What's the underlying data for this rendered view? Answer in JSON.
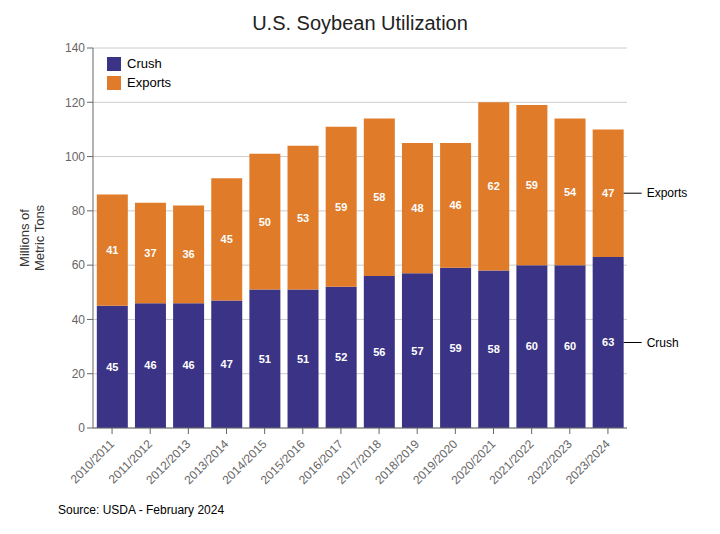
{
  "chart_data": {
    "type": "bar",
    "title": "U.S. Soybean Utilization",
    "ylabel": "Millions of\nMetric Tons",
    "source": "Source: USDA - February 2024",
    "categories": [
      "2010/2011",
      "2011/2012",
      "2012/2013",
      "2013/2014",
      "2014/2015",
      "2015/2016",
      "2016/2017",
      "2017/2018",
      "2018/2019",
      "2019/2020",
      "2020/2021",
      "2021/2022",
      "2022/2023",
      "2023/2024"
    ],
    "series": [
      {
        "name": "Crush",
        "color": "#3b3486",
        "values": [
          45,
          46,
          46,
          47,
          51,
          51,
          52,
          56,
          57,
          59,
          58,
          60,
          60,
          63
        ]
      },
      {
        "name": "Exports",
        "color": "#e07b2a",
        "values": [
          41,
          37,
          36,
          45,
          50,
          53,
          59,
          58,
          48,
          46,
          62,
          59,
          54,
          47
        ]
      }
    ],
    "annotations": [
      "Crush",
      "Exports"
    ],
    "stacked": true,
    "data_labels": true,
    "ylim": [
      0,
      140
    ],
    "yticks": [
      0,
      20,
      40,
      60,
      80,
      100,
      120,
      140
    ],
    "grid": true,
    "legend": "upper left"
  }
}
